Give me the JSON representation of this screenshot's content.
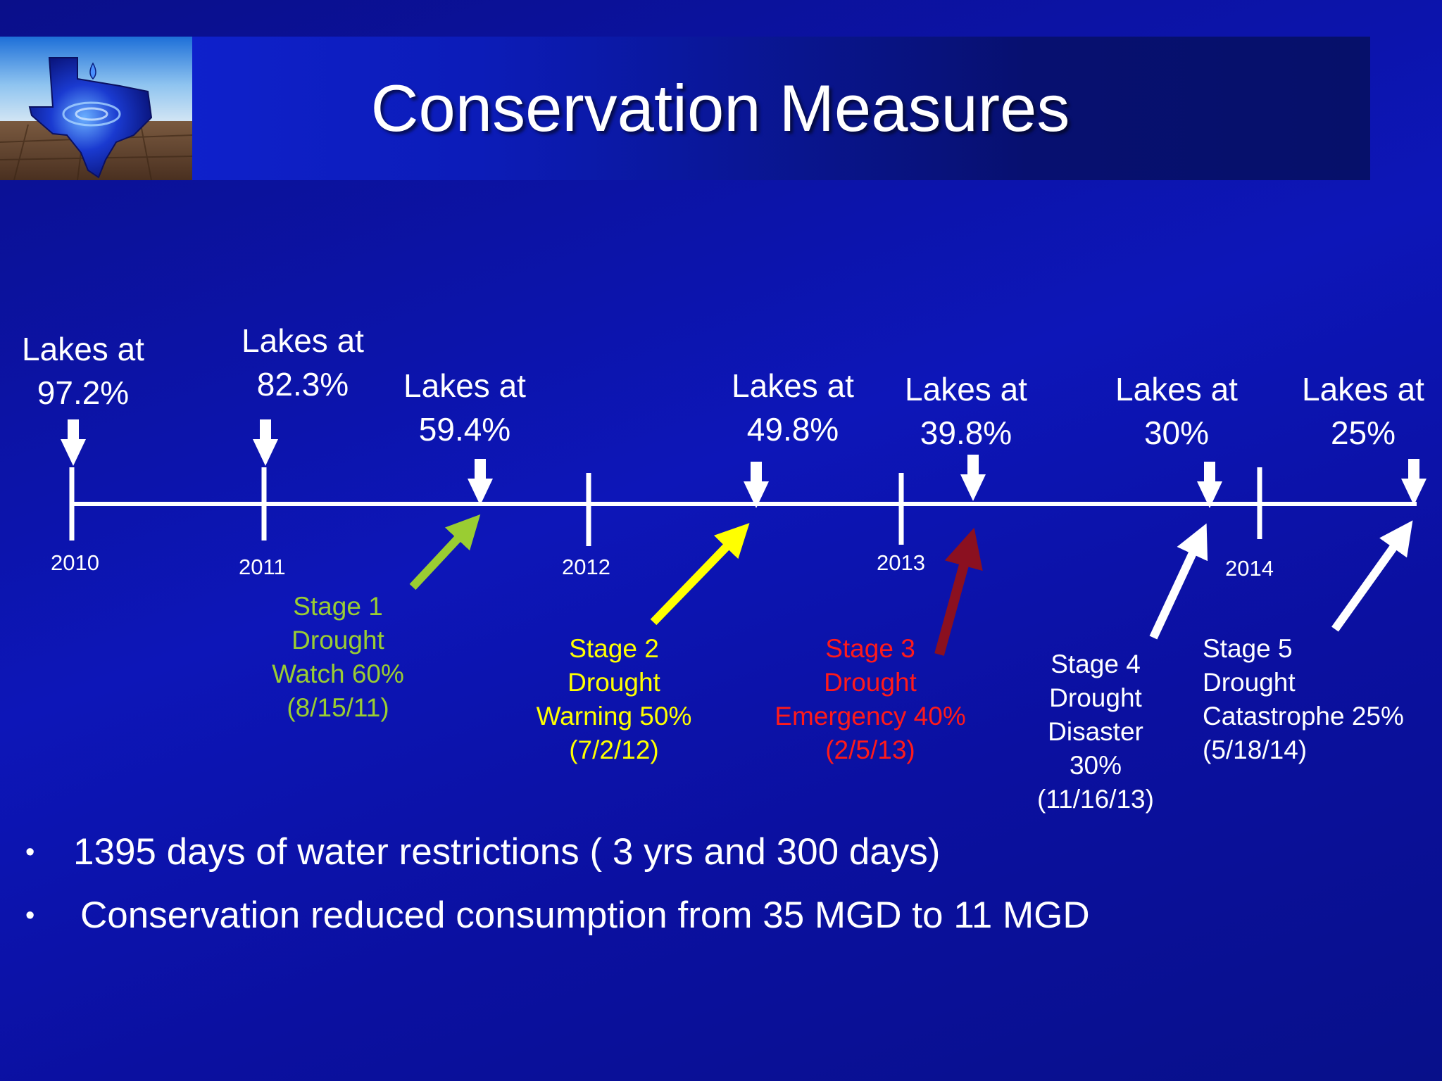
{
  "slide": {
    "title": "Conservation Measures"
  },
  "colors": {
    "stage1": "#9acd32",
    "stage2": "#ffff00",
    "stage3_text": "#ff1a1a",
    "stage3_arrow": "#8b1020",
    "white": "#ffffff"
  },
  "timeline": {
    "years": [
      "2010",
      "2011",
      "2012",
      "2013",
      "2014"
    ],
    "lakes": [
      "Lakes at\n97.2%",
      "Lakes at\n82.3%",
      "Lakes at\n59.4%",
      "Lakes at\n49.8%",
      "Lakes at\n39.8%",
      "Lakes at\n     30%",
      "Lakes at\n     25%"
    ],
    "stages": [
      "Stage 1\nDrought\nWatch 60%\n(8/15/11)",
      "Stage 2\nDrought\nWarning 50%\n(7/2/12)",
      "Stage 3\nDrought\nEmergency 40%\n(2/5/13)",
      "Stage 4\nDrought\nDisaster\n30%\n(11/16/13)",
      "Stage 5\nDrought\nCatastrophe 25%\n(5/18/14)"
    ]
  },
  "bullets": [
    "1395 days of water restrictions ( 3 yrs and 300 days)",
    "Conservation reduced consumption from 35 MGD to 11 MGD"
  ],
  "bullet_symbol": "•"
}
